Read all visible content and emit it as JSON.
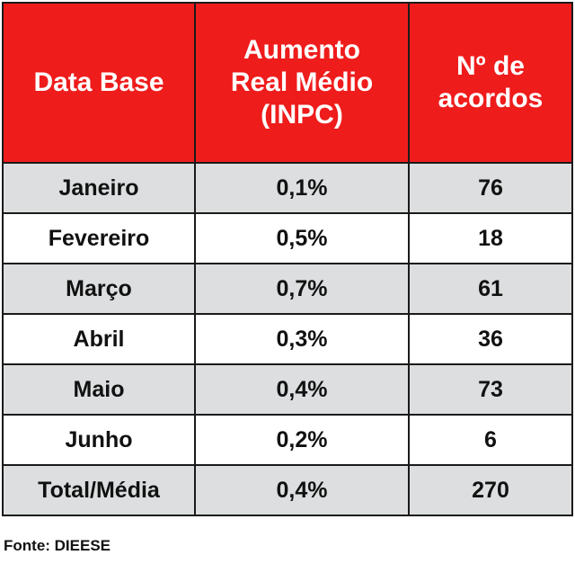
{
  "chart_data": {
    "type": "table",
    "columns": [
      "Data Base",
      "Aumento Real Médio (INPC)",
      "Nº de acordos"
    ],
    "header_lines": [
      [
        "Data Base"
      ],
      [
        "Aumento",
        "Real Médio",
        "(INPC)"
      ],
      [
        "Nº de",
        "acordos"
      ]
    ],
    "rows": [
      [
        "Janeiro",
        "0,1%",
        "76"
      ],
      [
        "Fevereiro",
        "0,5%",
        "18"
      ],
      [
        "Março",
        "0,7%",
        "61"
      ],
      [
        "Abril",
        "0,3%",
        "36"
      ],
      [
        "Maio",
        "0,4%",
        "73"
      ],
      [
        "Junho",
        "0,2%",
        "6"
      ],
      [
        "Total/Média",
        "0,4%",
        "270"
      ]
    ],
    "source": "Fonte: DIEESE"
  },
  "colors": {
    "header_background": "#ef1c1c",
    "header_text": "#ffffff",
    "row_shaded": "#dcdedf",
    "row_plain": "#ffffff",
    "border": "#1a1a1a"
  }
}
